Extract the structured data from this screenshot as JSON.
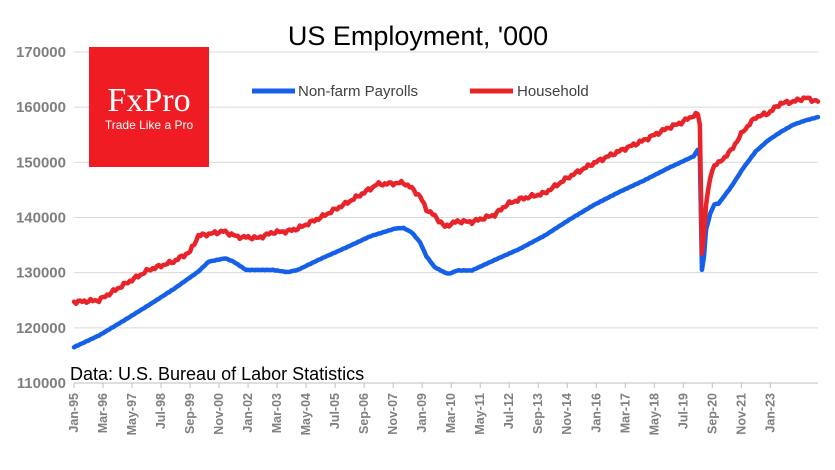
{
  "chart_data": {
    "type": "line",
    "title": "US Employment, '000",
    "source": "Data: U.S. Bureau of Labor Statistics",
    "logo": {
      "name": "FxPro",
      "tagline": "Trade Like a Pro",
      "color": "#ef1c24"
    },
    "ylim": [
      110000,
      170000
    ],
    "yticks": [
      110000,
      120000,
      130000,
      140000,
      150000,
      160000,
      170000
    ],
    "ytick_labels": [
      "110000",
      "120000",
      "130000",
      "140000",
      "150000",
      "160000",
      "170000"
    ],
    "x_start": "1995-01",
    "x_end": "2024-12",
    "xtick_labels": [
      "Jan-95",
      "Mar-96",
      "May-97",
      "Jul-98",
      "Sep-99",
      "Nov-00",
      "Jan-02",
      "Mar-03",
      "May-04",
      "Jul-05",
      "Sep-06",
      "Nov-07",
      "Jan-09",
      "Mar-10",
      "May-11",
      "Jul-12",
      "Sep-13",
      "Nov-14",
      "Jan-16",
      "Mar-17",
      "May-18",
      "Jul-19",
      "Sep-20",
      "Nov-21",
      "Jan-23"
    ],
    "legend_position": "top-center",
    "series": [
      {
        "name": "Non-farm Payrolls",
        "color": "#1560e8",
        "points": [
          [
            "1995-01",
            116500
          ],
          [
            "1996-01",
            118600
          ],
          [
            "1997-01",
            121300
          ],
          [
            "1998-01",
            124100
          ],
          [
            "1999-01",
            127000
          ],
          [
            "2000-01",
            130200
          ],
          [
            "2000-06",
            132000
          ],
          [
            "2001-02",
            132600
          ],
          [
            "2001-06",
            132000
          ],
          [
            "2001-12",
            130500
          ],
          [
            "2002-06",
            130500
          ],
          [
            "2003-01",
            130500
          ],
          [
            "2003-08",
            130100
          ],
          [
            "2004-01",
            130500
          ],
          [
            "2004-12",
            132500
          ],
          [
            "2005-12",
            134500
          ],
          [
            "2006-12",
            136600
          ],
          [
            "2007-12",
            138000
          ],
          [
            "2008-04",
            138100
          ],
          [
            "2008-08",
            137300
          ],
          [
            "2008-12",
            135500
          ],
          [
            "2009-03",
            133000
          ],
          [
            "2009-07",
            131000
          ],
          [
            "2009-12",
            130000
          ],
          [
            "2010-02",
            129800
          ],
          [
            "2010-06",
            130400
          ],
          [
            "2011-01",
            130400
          ],
          [
            "2011-12",
            132300
          ],
          [
            "2012-12",
            134300
          ],
          [
            "2013-12",
            136700
          ],
          [
            "2014-12",
            139600
          ],
          [
            "2015-12",
            142300
          ],
          [
            "2016-12",
            144600
          ],
          [
            "2017-12",
            146700
          ],
          [
            "2018-12",
            149000
          ],
          [
            "2019-12",
            151100
          ],
          [
            "2020-02",
            152300
          ],
          [
            "2020-03",
            151000
          ],
          [
            "2020-04",
            130500
          ],
          [
            "2020-05",
            133000
          ],
          [
            "2020-06",
            137800
          ],
          [
            "2020-08",
            140700
          ],
          [
            "2020-10",
            142400
          ],
          [
            "2020-12",
            142500
          ],
          [
            "2021-06",
            145500
          ],
          [
            "2021-12",
            149000
          ],
          [
            "2022-06",
            152000
          ],
          [
            "2022-12",
            154000
          ],
          [
            "2023-06",
            155500
          ],
          [
            "2023-12",
            156800
          ],
          [
            "2024-06",
            157600
          ],
          [
            "2024-12",
            158200
          ]
        ]
      },
      {
        "name": "Household",
        "color": "#e8232a",
        "points": [
          [
            "1995-01",
            124700
          ],
          [
            "1995-06",
            124800
          ],
          [
            "1996-01",
            125000
          ],
          [
            "1997-01",
            127800
          ],
          [
            "1998-01",
            130500
          ],
          [
            "1999-01",
            132000
          ],
          [
            "1999-09",
            133800
          ],
          [
            "2000-01",
            136700
          ],
          [
            "2000-06",
            137000
          ],
          [
            "2001-01",
            137500
          ],
          [
            "2001-08",
            136500
          ],
          [
            "2002-06",
            136300
          ],
          [
            "2003-01",
            137300
          ],
          [
            "2003-08",
            137500
          ],
          [
            "2004-01",
            138000
          ],
          [
            "2004-12",
            140000
          ],
          [
            "2005-12",
            142500
          ],
          [
            "2006-12",
            145200
          ],
          [
            "2007-03",
            146000
          ],
          [
            "2007-12",
            146200
          ],
          [
            "2008-04",
            146300
          ],
          [
            "2008-08",
            145300
          ],
          [
            "2008-12",
            143800
          ],
          [
            "2009-03",
            141500
          ],
          [
            "2009-07",
            140300
          ],
          [
            "2009-12",
            138300
          ],
          [
            "2010-02",
            138700
          ],
          [
            "2010-06",
            139300
          ],
          [
            "2011-01",
            139200
          ],
          [
            "2011-12",
            140500
          ],
          [
            "2012-06",
            142400
          ],
          [
            "2012-12",
            143300
          ],
          [
            "2013-12",
            144400
          ],
          [
            "2014-12",
            147400
          ],
          [
            "2015-12",
            149900
          ],
          [
            "2016-12",
            152000
          ],
          [
            "2017-12",
            154000
          ],
          [
            "2018-12",
            156300
          ],
          [
            "2019-06",
            157200
          ],
          [
            "2019-12",
            158500
          ],
          [
            "2020-02",
            158700
          ],
          [
            "2020-03",
            156900
          ],
          [
            "2020-04",
            133400
          ],
          [
            "2020-05",
            137500
          ],
          [
            "2020-06",
            142200
          ],
          [
            "2020-08",
            147300
          ],
          [
            "2020-10",
            149600
          ],
          [
            "2020-12",
            149800
          ],
          [
            "2021-06",
            152100
          ],
          [
            "2021-12",
            155700
          ],
          [
            "2022-06",
            158200
          ],
          [
            "2022-12",
            158900
          ],
          [
            "2023-06",
            160700
          ],
          [
            "2023-12",
            161000
          ],
          [
            "2024-06",
            161700
          ],
          [
            "2024-12",
            161000
          ]
        ]
      }
    ]
  }
}
